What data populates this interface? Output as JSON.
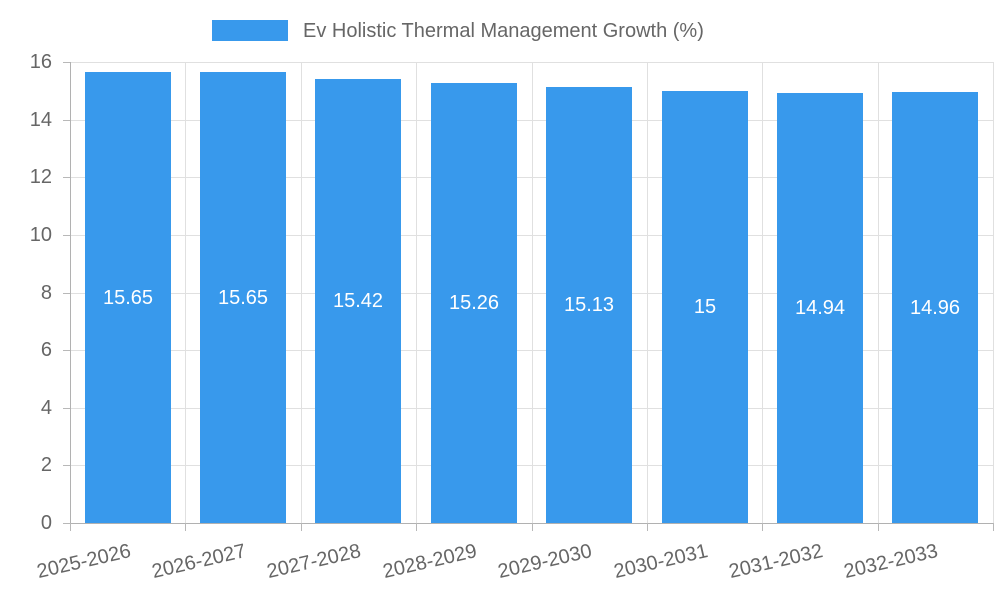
{
  "chart_data": {
    "type": "bar",
    "legend_label": "Ev Holistic Thermal Management Growth (%)",
    "categories": [
      "2025-2026",
      "2026-2027",
      "2027-2028",
      "2028-2029",
      "2029-2030",
      "2030-2031",
      "2031-2032",
      "2032-2033"
    ],
    "values": [
      15.65,
      15.65,
      15.42,
      15.26,
      15.13,
      15,
      14.94,
      14.96
    ],
    "value_labels": [
      "15.65",
      "15.65",
      "15.42",
      "15.26",
      "15.13",
      "15",
      "14.94",
      "14.96"
    ],
    "title": "",
    "xlabel": "",
    "ylabel": "",
    "ylim": [
      0,
      16
    ],
    "yticks": [
      0,
      2,
      4,
      6,
      8,
      10,
      12,
      14,
      16
    ],
    "grid": true,
    "legend_position": "top",
    "colors": {
      "bar": "#3899ec",
      "bar_label": "#ffffff",
      "axis_line": "#b1b1b1",
      "gridline": "#e0e0e0",
      "tick_mark": "#b8b8b8",
      "tick_text": "#666666",
      "legend_text": "#666666"
    }
  }
}
